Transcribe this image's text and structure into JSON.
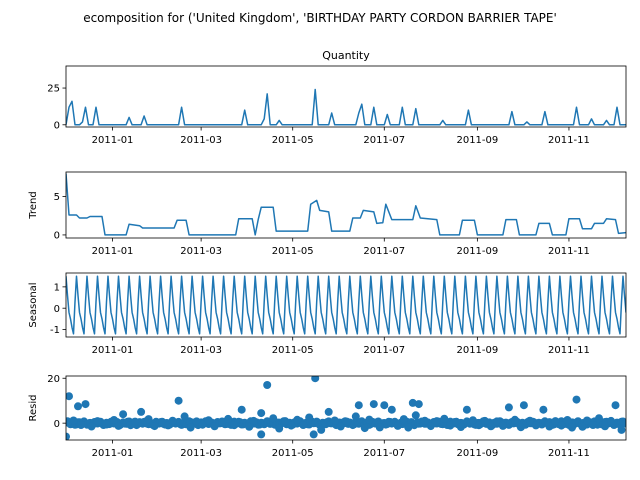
{
  "chart_data": {
    "type": "line",
    "title": "ecomposition for ('United Kingdom', 'BIRTHDAY PARTY CORDON BARRIER TAPE'",
    "x_range": [
      "2010-12-01",
      "2011-12-09"
    ],
    "x_ticks": [
      "2011-01",
      "2011-03",
      "2011-05",
      "2011-07",
      "2011-09",
      "2011-11"
    ],
    "line_color": "#1f77b4",
    "panels": [
      {
        "name": "observed",
        "subtitle": "Quantity",
        "ylabel": "",
        "kind": "line",
        "ylim": [
          -1.5,
          40
        ],
        "yticks": [
          0,
          25
        ],
        "points": [
          [
            "2010-12-01",
            0
          ],
          [
            "2010-12-03",
            12
          ],
          [
            "2010-12-05",
            16
          ],
          [
            "2010-12-07",
            0
          ],
          [
            "2010-12-10",
            0
          ],
          [
            "2010-12-12",
            2
          ],
          [
            "2010-12-14",
            12
          ],
          [
            "2010-12-16",
            0
          ],
          [
            "2010-12-19",
            0
          ],
          [
            "2010-12-21",
            12
          ],
          [
            "2010-12-23",
            0
          ],
          [
            "2011-01-10",
            0
          ],
          [
            "2011-01-12",
            5
          ],
          [
            "2011-01-14",
            0
          ],
          [
            "2011-01-20",
            0
          ],
          [
            "2011-01-22",
            6
          ],
          [
            "2011-01-24",
            0
          ],
          [
            "2011-02-14",
            0
          ],
          [
            "2011-02-16",
            12
          ],
          [
            "2011-02-18",
            0
          ],
          [
            "2011-03-28",
            0
          ],
          [
            "2011-03-30",
            10
          ],
          [
            "2011-04-01",
            0
          ],
          [
            "2011-04-10",
            0
          ],
          [
            "2011-04-12",
            4
          ],
          [
            "2011-04-14",
            21
          ],
          [
            "2011-04-16",
            0
          ],
          [
            "2011-04-20",
            0
          ],
          [
            "2011-04-22",
            3
          ],
          [
            "2011-04-24",
            0
          ],
          [
            "2011-05-14",
            0
          ],
          [
            "2011-05-16",
            24
          ],
          [
            "2011-05-18",
            0
          ],
          [
            "2011-05-25",
            0
          ],
          [
            "2011-05-27",
            8
          ],
          [
            "2011-05-29",
            0
          ],
          [
            "2011-06-12",
            0
          ],
          [
            "2011-06-14",
            8
          ],
          [
            "2011-06-16",
            14
          ],
          [
            "2011-06-18",
            0
          ],
          [
            "2011-06-22",
            0
          ],
          [
            "2011-06-24",
            12
          ],
          [
            "2011-06-26",
            0
          ],
          [
            "2011-07-01",
            0
          ],
          [
            "2011-07-03",
            7
          ],
          [
            "2011-07-05",
            0
          ],
          [
            "2011-07-11",
            0
          ],
          [
            "2011-07-13",
            12
          ],
          [
            "2011-07-15",
            0
          ],
          [
            "2011-07-20",
            0
          ],
          [
            "2011-07-22",
            11
          ],
          [
            "2011-07-24",
            0
          ],
          [
            "2011-08-07",
            0
          ],
          [
            "2011-08-09",
            3
          ],
          [
            "2011-08-11",
            0
          ],
          [
            "2011-08-24",
            0
          ],
          [
            "2011-08-26",
            10
          ],
          [
            "2011-08-28",
            0
          ],
          [
            "2011-09-22",
            0
          ],
          [
            "2011-09-24",
            9
          ],
          [
            "2011-09-26",
            0
          ],
          [
            "2011-10-02",
            0
          ],
          [
            "2011-10-04",
            2
          ],
          [
            "2011-10-06",
            0
          ],
          [
            "2011-10-14",
            0
          ],
          [
            "2011-10-16",
            9
          ],
          [
            "2011-10-18",
            0
          ],
          [
            "2011-11-04",
            0
          ],
          [
            "2011-11-06",
            12
          ],
          [
            "2011-11-08",
            0
          ],
          [
            "2011-11-14",
            0
          ],
          [
            "2011-11-16",
            4
          ],
          [
            "2011-11-18",
            0
          ],
          [
            "2011-11-24",
            0
          ],
          [
            "2011-11-26",
            3
          ],
          [
            "2011-11-28",
            0
          ],
          [
            "2011-12-01",
            0
          ],
          [
            "2011-12-03",
            12
          ],
          [
            "2011-12-05",
            0
          ],
          [
            "2011-12-09",
            0
          ]
        ]
      },
      {
        "name": "trend",
        "subtitle": "",
        "ylabel": "Trend",
        "kind": "line",
        "ylim": [
          -0.4,
          8.2
        ],
        "yticks": [
          0,
          5
        ],
        "points": [
          [
            "2010-12-01",
            8
          ],
          [
            "2010-12-03",
            2.6
          ],
          [
            "2010-12-08",
            2.6
          ],
          [
            "2010-12-10",
            2.2
          ],
          [
            "2010-12-15",
            2.2
          ],
          [
            "2010-12-17",
            2.4
          ],
          [
            "2010-12-25",
            2.4
          ],
          [
            "2010-12-27",
            0
          ],
          [
            "2011-01-10",
            0
          ],
          [
            "2011-01-12",
            1.4
          ],
          [
            "2011-01-19",
            1.2
          ],
          [
            "2011-01-21",
            0.9
          ],
          [
            "2011-02-11",
            0.9
          ],
          [
            "2011-02-13",
            1.9
          ],
          [
            "2011-02-19",
            1.9
          ],
          [
            "2011-02-21",
            0
          ],
          [
            "2011-03-24",
            0
          ],
          [
            "2011-03-26",
            2.1
          ],
          [
            "2011-04-04",
            2.1
          ],
          [
            "2011-04-06",
            0
          ],
          [
            "2011-04-08",
            2
          ],
          [
            "2011-04-10",
            3.6
          ],
          [
            "2011-04-18",
            3.6
          ],
          [
            "2011-04-20",
            0.5
          ],
          [
            "2011-05-11",
            0.5
          ],
          [
            "2011-05-13",
            4
          ],
          [
            "2011-05-17",
            4.5
          ],
          [
            "2011-05-19",
            3.2
          ],
          [
            "2011-05-25",
            3
          ],
          [
            "2011-05-27",
            0.5
          ],
          [
            "2011-06-08",
            0.5
          ],
          [
            "2011-06-10",
            2.2
          ],
          [
            "2011-06-15",
            2.2
          ],
          [
            "2011-06-17",
            3.2
          ],
          [
            "2011-06-24",
            3
          ],
          [
            "2011-06-26",
            1.5
          ],
          [
            "2011-06-30",
            1.6
          ],
          [
            "2011-07-02",
            4
          ],
          [
            "2011-07-06",
            2
          ],
          [
            "2011-07-20",
            2
          ],
          [
            "2011-07-22",
            3.8
          ],
          [
            "2011-07-25",
            2.2
          ],
          [
            "2011-08-05",
            2
          ],
          [
            "2011-08-07",
            0
          ],
          [
            "2011-08-20",
            0
          ],
          [
            "2011-08-22",
            1.9
          ],
          [
            "2011-08-30",
            1.9
          ],
          [
            "2011-09-01",
            0
          ],
          [
            "2011-09-18",
            0
          ],
          [
            "2011-09-20",
            2
          ],
          [
            "2011-09-27",
            2
          ],
          [
            "2011-09-29",
            0
          ],
          [
            "2011-10-10",
            0
          ],
          [
            "2011-10-12",
            1.5
          ],
          [
            "2011-10-19",
            1.5
          ],
          [
            "2011-10-21",
            0
          ],
          [
            "2011-10-30",
            0
          ],
          [
            "2011-11-01",
            2.1
          ],
          [
            "2011-11-08",
            2.1
          ],
          [
            "2011-11-10",
            0.8
          ],
          [
            "2011-11-16",
            0.8
          ],
          [
            "2011-11-18",
            1.5
          ],
          [
            "2011-11-24",
            1.5
          ],
          [
            "2011-11-26",
            2.1
          ],
          [
            "2011-12-02",
            2
          ],
          [
            "2011-12-04",
            0.2
          ],
          [
            "2011-12-09",
            0.3
          ]
        ]
      },
      {
        "name": "seasonal",
        "subtitle": "",
        "ylabel": "Seasonal",
        "kind": "seasonal",
        "ylim": [
          -1.35,
          1.65
        ],
        "yticks": [
          -1,
          0,
          1
        ],
        "period_days": 7,
        "weekly_pattern": [
          1.5,
          0.6,
          -0.2,
          -0.5,
          -0.9,
          -1.2,
          0.3
        ]
      },
      {
        "name": "resid",
        "subtitle": "",
        "ylabel": "Resid",
        "kind": "scatter",
        "ylim": [
          -7.5,
          21
        ],
        "yticks": [
          0,
          20
        ],
        "outliers": [
          [
            "2010-12-01",
            -6
          ],
          [
            "2010-12-03",
            12
          ],
          [
            "2010-12-09",
            7.5
          ],
          [
            "2010-12-14",
            8.5
          ],
          [
            "2011-01-08",
            4
          ],
          [
            "2011-01-20",
            5
          ],
          [
            "2011-02-14",
            10
          ],
          [
            "2011-02-18",
            3
          ],
          [
            "2011-03-28",
            6
          ],
          [
            "2011-04-10",
            4.5
          ],
          [
            "2011-04-10",
            -5
          ],
          [
            "2011-04-14",
            17
          ],
          [
            "2011-05-15",
            -5
          ],
          [
            "2011-05-16",
            20
          ],
          [
            "2011-05-25",
            5
          ],
          [
            "2011-06-12",
            3
          ],
          [
            "2011-06-14",
            8
          ],
          [
            "2011-06-24",
            8.5
          ],
          [
            "2011-07-01",
            8
          ],
          [
            "2011-07-06",
            6
          ],
          [
            "2011-07-20",
            9
          ],
          [
            "2011-07-22",
            3.5
          ],
          [
            "2011-07-24",
            8.5
          ],
          [
            "2011-08-25",
            6
          ],
          [
            "2011-09-22",
            7
          ],
          [
            "2011-10-02",
            8
          ],
          [
            "2011-10-15",
            6
          ],
          [
            "2011-11-06",
            10.5
          ],
          [
            "2011-12-02",
            8
          ],
          [
            "2011-12-06",
            -3
          ]
        ],
        "baseline_points": [
          [
            "2010-12-06",
            1.2
          ],
          [
            "2010-12-11",
            -0.8
          ],
          [
            "2010-12-18",
            -1.5
          ],
          [
            "2010-12-22",
            0.9
          ],
          [
            "2010-12-28",
            -0.6
          ],
          [
            "2011-01-02",
            1.4
          ],
          [
            "2011-01-05",
            -1.2
          ],
          [
            "2011-01-13",
            -0.9
          ],
          [
            "2011-01-16",
            0.7
          ],
          [
            "2011-01-25",
            1.8
          ],
          [
            "2011-01-29",
            -1.3
          ],
          [
            "2011-02-03",
            0.5
          ],
          [
            "2011-02-07",
            -1.0
          ],
          [
            "2011-02-10",
            1.1
          ],
          [
            "2011-02-22",
            -2.0
          ],
          [
            "2011-02-26",
            0.8
          ],
          [
            "2011-03-02",
            -0.7
          ],
          [
            "2011-03-06",
            1.3
          ],
          [
            "2011-03-10",
            -1.4
          ],
          [
            "2011-03-15",
            0.6
          ],
          [
            "2011-03-19",
            1.9
          ],
          [
            "2011-03-23",
            -0.9
          ],
          [
            "2011-04-02",
            -1.6
          ],
          [
            "2011-04-05",
            1.0
          ],
          [
            "2011-04-18",
            2.2
          ],
          [
            "2011-04-22",
            -2.4
          ],
          [
            "2011-04-26",
            0.9
          ],
          [
            "2011-04-30",
            -1.1
          ],
          [
            "2011-05-04",
            1.5
          ],
          [
            "2011-05-08",
            -0.8
          ],
          [
            "2011-05-12",
            2.5
          ],
          [
            "2011-05-20",
            -3.0
          ],
          [
            "2011-05-29",
            1.2
          ],
          [
            "2011-06-02",
            -1.5
          ],
          [
            "2011-06-06",
            0.7
          ],
          [
            "2011-06-18",
            -2.2
          ],
          [
            "2011-06-21",
            1.6
          ],
          [
            "2011-06-28",
            -1.9
          ],
          [
            "2011-07-10",
            -1.2
          ],
          [
            "2011-07-14",
            1.8
          ],
          [
            "2011-07-17",
            -2.0
          ],
          [
            "2011-07-28",
            1.1
          ],
          [
            "2011-08-01",
            -1.3
          ],
          [
            "2011-08-05",
            0.9
          ],
          [
            "2011-08-10",
            2.0
          ],
          [
            "2011-08-14",
            -1.1
          ],
          [
            "2011-08-18",
            0.6
          ],
          [
            "2011-08-21",
            -1.7
          ],
          [
            "2011-08-29",
            1.3
          ],
          [
            "2011-09-02",
            -0.9
          ],
          [
            "2011-09-06",
            1.0
          ],
          [
            "2011-09-10",
            -1.4
          ],
          [
            "2011-09-14",
            0.8
          ],
          [
            "2011-09-18",
            -1.2
          ],
          [
            "2011-09-26",
            1.5
          ],
          [
            "2011-09-30",
            -1.8
          ],
          [
            "2011-10-06",
            1.1
          ],
          [
            "2011-10-10",
            -1.0
          ],
          [
            "2011-10-19",
            -1.5
          ],
          [
            "2011-10-23",
            0.9
          ],
          [
            "2011-10-27",
            -1.1
          ],
          [
            "2011-10-31",
            1.4
          ],
          [
            "2011-11-03",
            -2.0
          ],
          [
            "2011-11-10",
            -1.6
          ],
          [
            "2011-11-13",
            1.2
          ],
          [
            "2011-11-17",
            -0.8
          ],
          [
            "2011-11-21",
            2.2
          ],
          [
            "2011-11-25",
            -1.4
          ],
          [
            "2011-11-29",
            1.0
          ]
        ]
      }
    ]
  }
}
